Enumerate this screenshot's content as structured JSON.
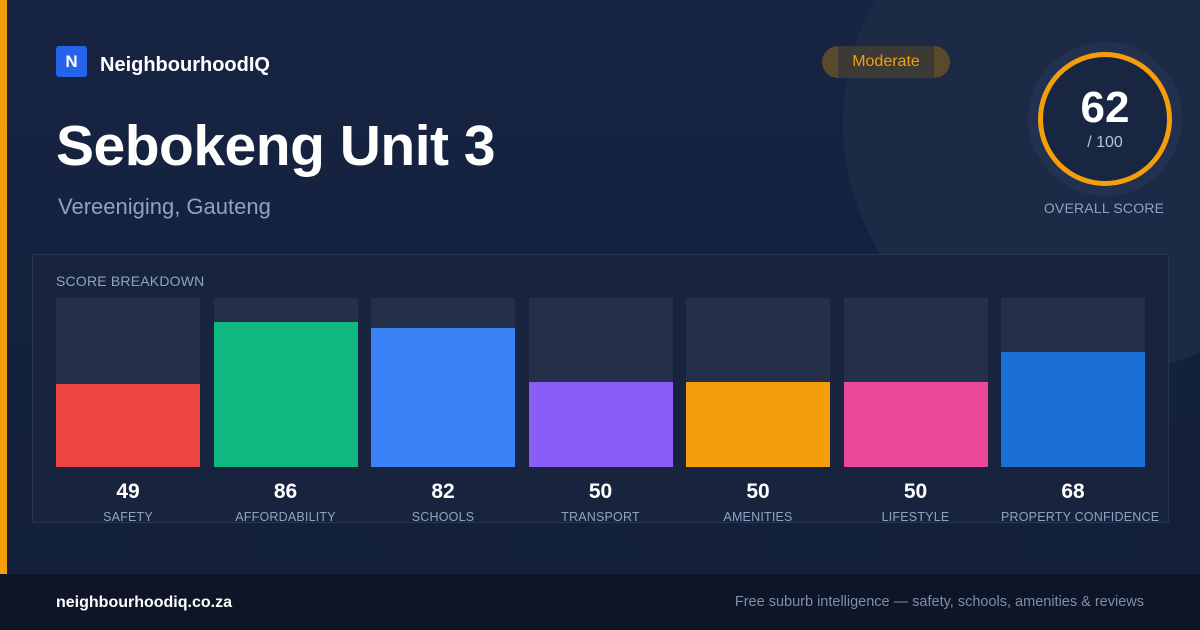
{
  "brand": {
    "logo_letter": "N",
    "name": "NeighbourhoodIQ"
  },
  "suburb": {
    "name": "Sebokeng Unit 3",
    "location": "Vereeniging, Gauteng"
  },
  "badge": {
    "label": "Moderate"
  },
  "overall": {
    "score": "62",
    "max_label": "/ 100",
    "caption": "OVERALL SCORE",
    "score_fraction": 0.62
  },
  "breakdown": {
    "title": "SCORE BREAKDOWN",
    "items": [
      {
        "label": "SAFETY",
        "value": "49",
        "color": "#ef4444"
      },
      {
        "label": "AFFORDABILITY",
        "value": "86",
        "color": "#10b981"
      },
      {
        "label": "SCHOOLS",
        "value": "82",
        "color": "#3b82f6"
      },
      {
        "label": "TRANSPORT",
        "value": "50",
        "color": "#8b5cf6"
      },
      {
        "label": "AMENITIES",
        "value": "50",
        "color": "#f59e0b"
      },
      {
        "label": "LIFESTYLE",
        "value": "50",
        "color": "#ec4899"
      },
      {
        "label": "PROPERTY CONFIDENCE",
        "value": "68",
        "color": "#1d6fd8"
      }
    ]
  },
  "footer": {
    "domain": "neighbourhoodiq.co.za",
    "tagline": "Free suburb intelligence — safety, schools, amenities & reviews"
  },
  "colors": {
    "accent": "#f59e0b",
    "brand_blue": "#2563eb"
  }
}
